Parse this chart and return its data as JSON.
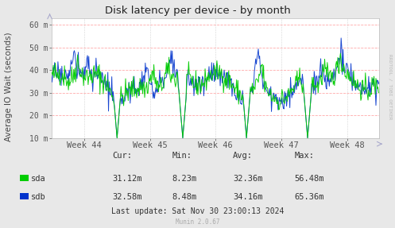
{
  "title": "Disk latency per device - by month",
  "ylabel": "Average IO Wait (seconds)",
  "background_color": "#e8e8e8",
  "plot_bg_color": "#ffffff",
  "grid_color": "#ffaaaa",
  "ytick_labels": [
    "10 m",
    "20 m",
    "30 m",
    "40 m",
    "50 m",
    "60 m"
  ],
  "ytick_vals": [
    10,
    20,
    30,
    40,
    50,
    60
  ],
  "ylim": [
    10,
    63
  ],
  "xtick_labels": [
    "Week 44",
    "Week 45",
    "Week 46",
    "Week 47",
    "Week 48"
  ],
  "stats_header": [
    "Cur:",
    "Min:",
    "Avg:",
    "Max:"
  ],
  "stats_sda": [
    "31.12m",
    "8.23m",
    "32.36m",
    "56.48m"
  ],
  "stats_sdb": [
    "32.58m",
    "8.48m",
    "34.16m",
    "65.36m"
  ],
  "last_update": "Last update: Sat Nov 30 23:00:13 2024",
  "munin_version": "Munin 2.0.67",
  "rrdtool_label": "RRDTOOL / TOBI OETIKER",
  "sda_color": "#00cc00",
  "sdb_color": "#0033cc",
  "n_points": 500
}
